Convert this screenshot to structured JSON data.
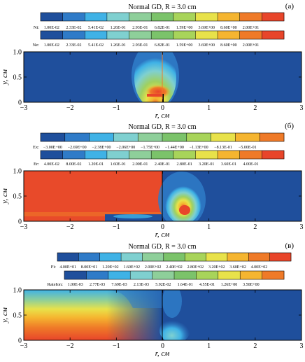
{
  "panels": [
    {
      "title": "Normal GD, R = 3.0 cm",
      "letter": "(а)",
      "bars": [
        {
          "label": "Ni:",
          "ticks": [
            "1.00E-02",
            "2.33E-02",
            "5.41E-02",
            "1.26E-01",
            "2.93E-01",
            "6.82E-01",
            "1.59E+00",
            "3.69E+00",
            "8.60E+00",
            "2.00E+01"
          ],
          "colors": [
            "#1f4f9c",
            "#2f7bc8",
            "#3fb2e6",
            "#7fd0d0",
            "#8ecf9a",
            "#7bc36a",
            "#a8d45a",
            "#e8e24a",
            "#f5b530",
            "#ef7a28",
            "#e8452a"
          ]
        },
        {
          "label": "Ne:",
          "ticks": [
            "1.00E-02",
            "2.33E-02",
            "5.41E-02",
            "1.26E-01",
            "2.93E-01",
            "6.82E-01",
            "1.59E+00",
            "3.69E+00",
            "8.60E+00",
            "2.00E+01"
          ],
          "colors": [
            "#1f4f9c",
            "#2f7bc8",
            "#3fb2e6",
            "#7fd0d0",
            "#8ecf9a",
            "#7bc36a",
            "#a8d45a",
            "#e8e24a",
            "#f5b530",
            "#ef7a28",
            "#e8452a"
          ]
        }
      ],
      "axes": {
        "xlabel": "r, см",
        "ylabel": "y, см",
        "xticks": [
          "−3",
          "−2",
          "−1",
          "0",
          "1",
          "2",
          "3"
        ],
        "yticks": [
          "0",
          "0.5",
          "1.0"
        ]
      }
    },
    {
      "title": "Normal GD, R = 3.0 cm",
      "letter": "(б)",
      "bars": [
        {
          "label": "Ex:",
          "ticks": [
            "−3.00E+00",
            "−2.69E+00",
            "−2.38E+00",
            "−2.06E+00",
            "−1.75E+00",
            "−1.44E+00",
            "−1.13E+00",
            "−8.13E-01",
            "−5.00E-01"
          ],
          "colors": [
            "#1f4f9c",
            "#2f7bc8",
            "#3fb2e6",
            "#7fd0d0",
            "#8ecf9a",
            "#7bc36a",
            "#a8d45a",
            "#e8e24a",
            "#f5b530",
            "#ef7a28"
          ]
        },
        {
          "label": "Er:",
          "ticks": [
            "4.00E-02",
            "8.00E-02",
            "1.20E-01",
            "1.60E-01",
            "2.00E-01",
            "2.40E-01",
            "2.80E-01",
            "3.20E-01",
            "3.60E-01",
            "4.00E-01"
          ],
          "colors": [
            "#1f4f9c",
            "#2f7bc8",
            "#3fb2e6",
            "#7fd0d0",
            "#8ecf9a",
            "#7bc36a",
            "#a8d45a",
            "#e8e24a",
            "#f5b530",
            "#ef7a28",
            "#e8452a"
          ]
        }
      ],
      "axes": {
        "xlabel": "r, см",
        "ylabel": "y, см",
        "xticks": [
          "−3",
          "−2",
          "−1",
          "0",
          "1",
          "2",
          "3"
        ],
        "yticks": [
          "0",
          "0.5",
          "1.0"
        ]
      }
    },
    {
      "title": "Normal GD, R = 3.0 cm",
      "letter": "(в)",
      "bars": [
        {
          "label": "Fi:",
          "ticks": [
            "4.00E+01",
            "8.00E+01",
            "1.20E+02",
            "1.60E+02",
            "2.00E+02",
            "2.40E+02",
            "2.80E+02",
            "3.20E+02",
            "3.60E+02",
            "4.00E+02"
          ],
          "colors": [
            "#1f4f9c",
            "#2f7bc8",
            "#3fb2e6",
            "#7fd0d0",
            "#8ecf9a",
            "#7bc36a",
            "#a8d45a",
            "#e8e24a",
            "#f5b530",
            "#ef7a28",
            "#e8452a"
          ]
        },
        {
          "label": "RateIon:",
          "ticks": [
            "1.00E-03",
            "2.77E-03",
            "7.69E-03",
            "2.13E-03",
            "5.92E-02",
            "1.64E-01",
            "4.55E-01",
            "1.26E+00",
            "3.50E+00"
          ],
          "colors": [
            "#1f4f9c",
            "#2f7bc8",
            "#3fb2e6",
            "#7fd0d0",
            "#8ecf9a",
            "#7bc36a",
            "#a8d45a",
            "#e8e24a",
            "#f5b530",
            "#ef7a28"
          ]
        }
      ],
      "axes": {
        "xlabel": "r, см",
        "ylabel": "y, см",
        "xticks": [
          "−3",
          "−2",
          "−1",
          "0",
          "1",
          "2",
          "3"
        ],
        "yticks": [
          "0",
          "0.5",
          "1.0"
        ]
      }
    }
  ],
  "chart_data": [
    {
      "type": "heatmap",
      "title": "Normal GD, R = 3.0 cm",
      "panel": "(а)",
      "left_quantity": "Ni",
      "right_quantity": "Ne",
      "xlabel": "r, см",
      "ylabel": "y, см",
      "xlim": [
        -3,
        3
      ],
      "ylim": [
        0,
        1.0
      ],
      "colorbar_levels": [
        0.01,
        0.0233,
        0.0541,
        0.126,
        0.293,
        0.682,
        1.59,
        3.69,
        8.6,
        20.0
      ],
      "scale": "log"
    },
    {
      "type": "heatmap",
      "title": "Normal GD, R = 3.0 cm",
      "panel": "(б)",
      "left_quantity": "Ex",
      "right_quantity": "Er",
      "xlabel": "r, см",
      "ylabel": "y, см",
      "xlim": [
        -3,
        3
      ],
      "ylim": [
        0,
        1.0
      ],
      "colorbar_levels_left": [
        -3.0,
        -2.69,
        -2.38,
        -2.06,
        -1.75,
        -1.44,
        -1.13,
        -0.813,
        -0.5
      ],
      "colorbar_levels_right": [
        0.04,
        0.08,
        0.12,
        0.16,
        0.2,
        0.24,
        0.28,
        0.32,
        0.36,
        0.4
      ]
    },
    {
      "type": "heatmap",
      "title": "Normal GD, R = 3.0 cm",
      "panel": "(в)",
      "left_quantity": "Fi",
      "right_quantity": "RateIon",
      "xlabel": "r, см",
      "ylabel": "y, см",
      "xlim": [
        -3,
        3
      ],
      "ylim": [
        0,
        1.0
      ],
      "colorbar_levels_left": [
        40,
        80,
        120,
        160,
        200,
        240,
        280,
        320,
        360,
        400
      ],
      "colorbar_levels_right": [
        0.001,
        0.00277,
        0.00769,
        0.00213,
        0.0592,
        0.164,
        0.455,
        1.26,
        3.5
      ],
      "scale_right": "log"
    }
  ]
}
